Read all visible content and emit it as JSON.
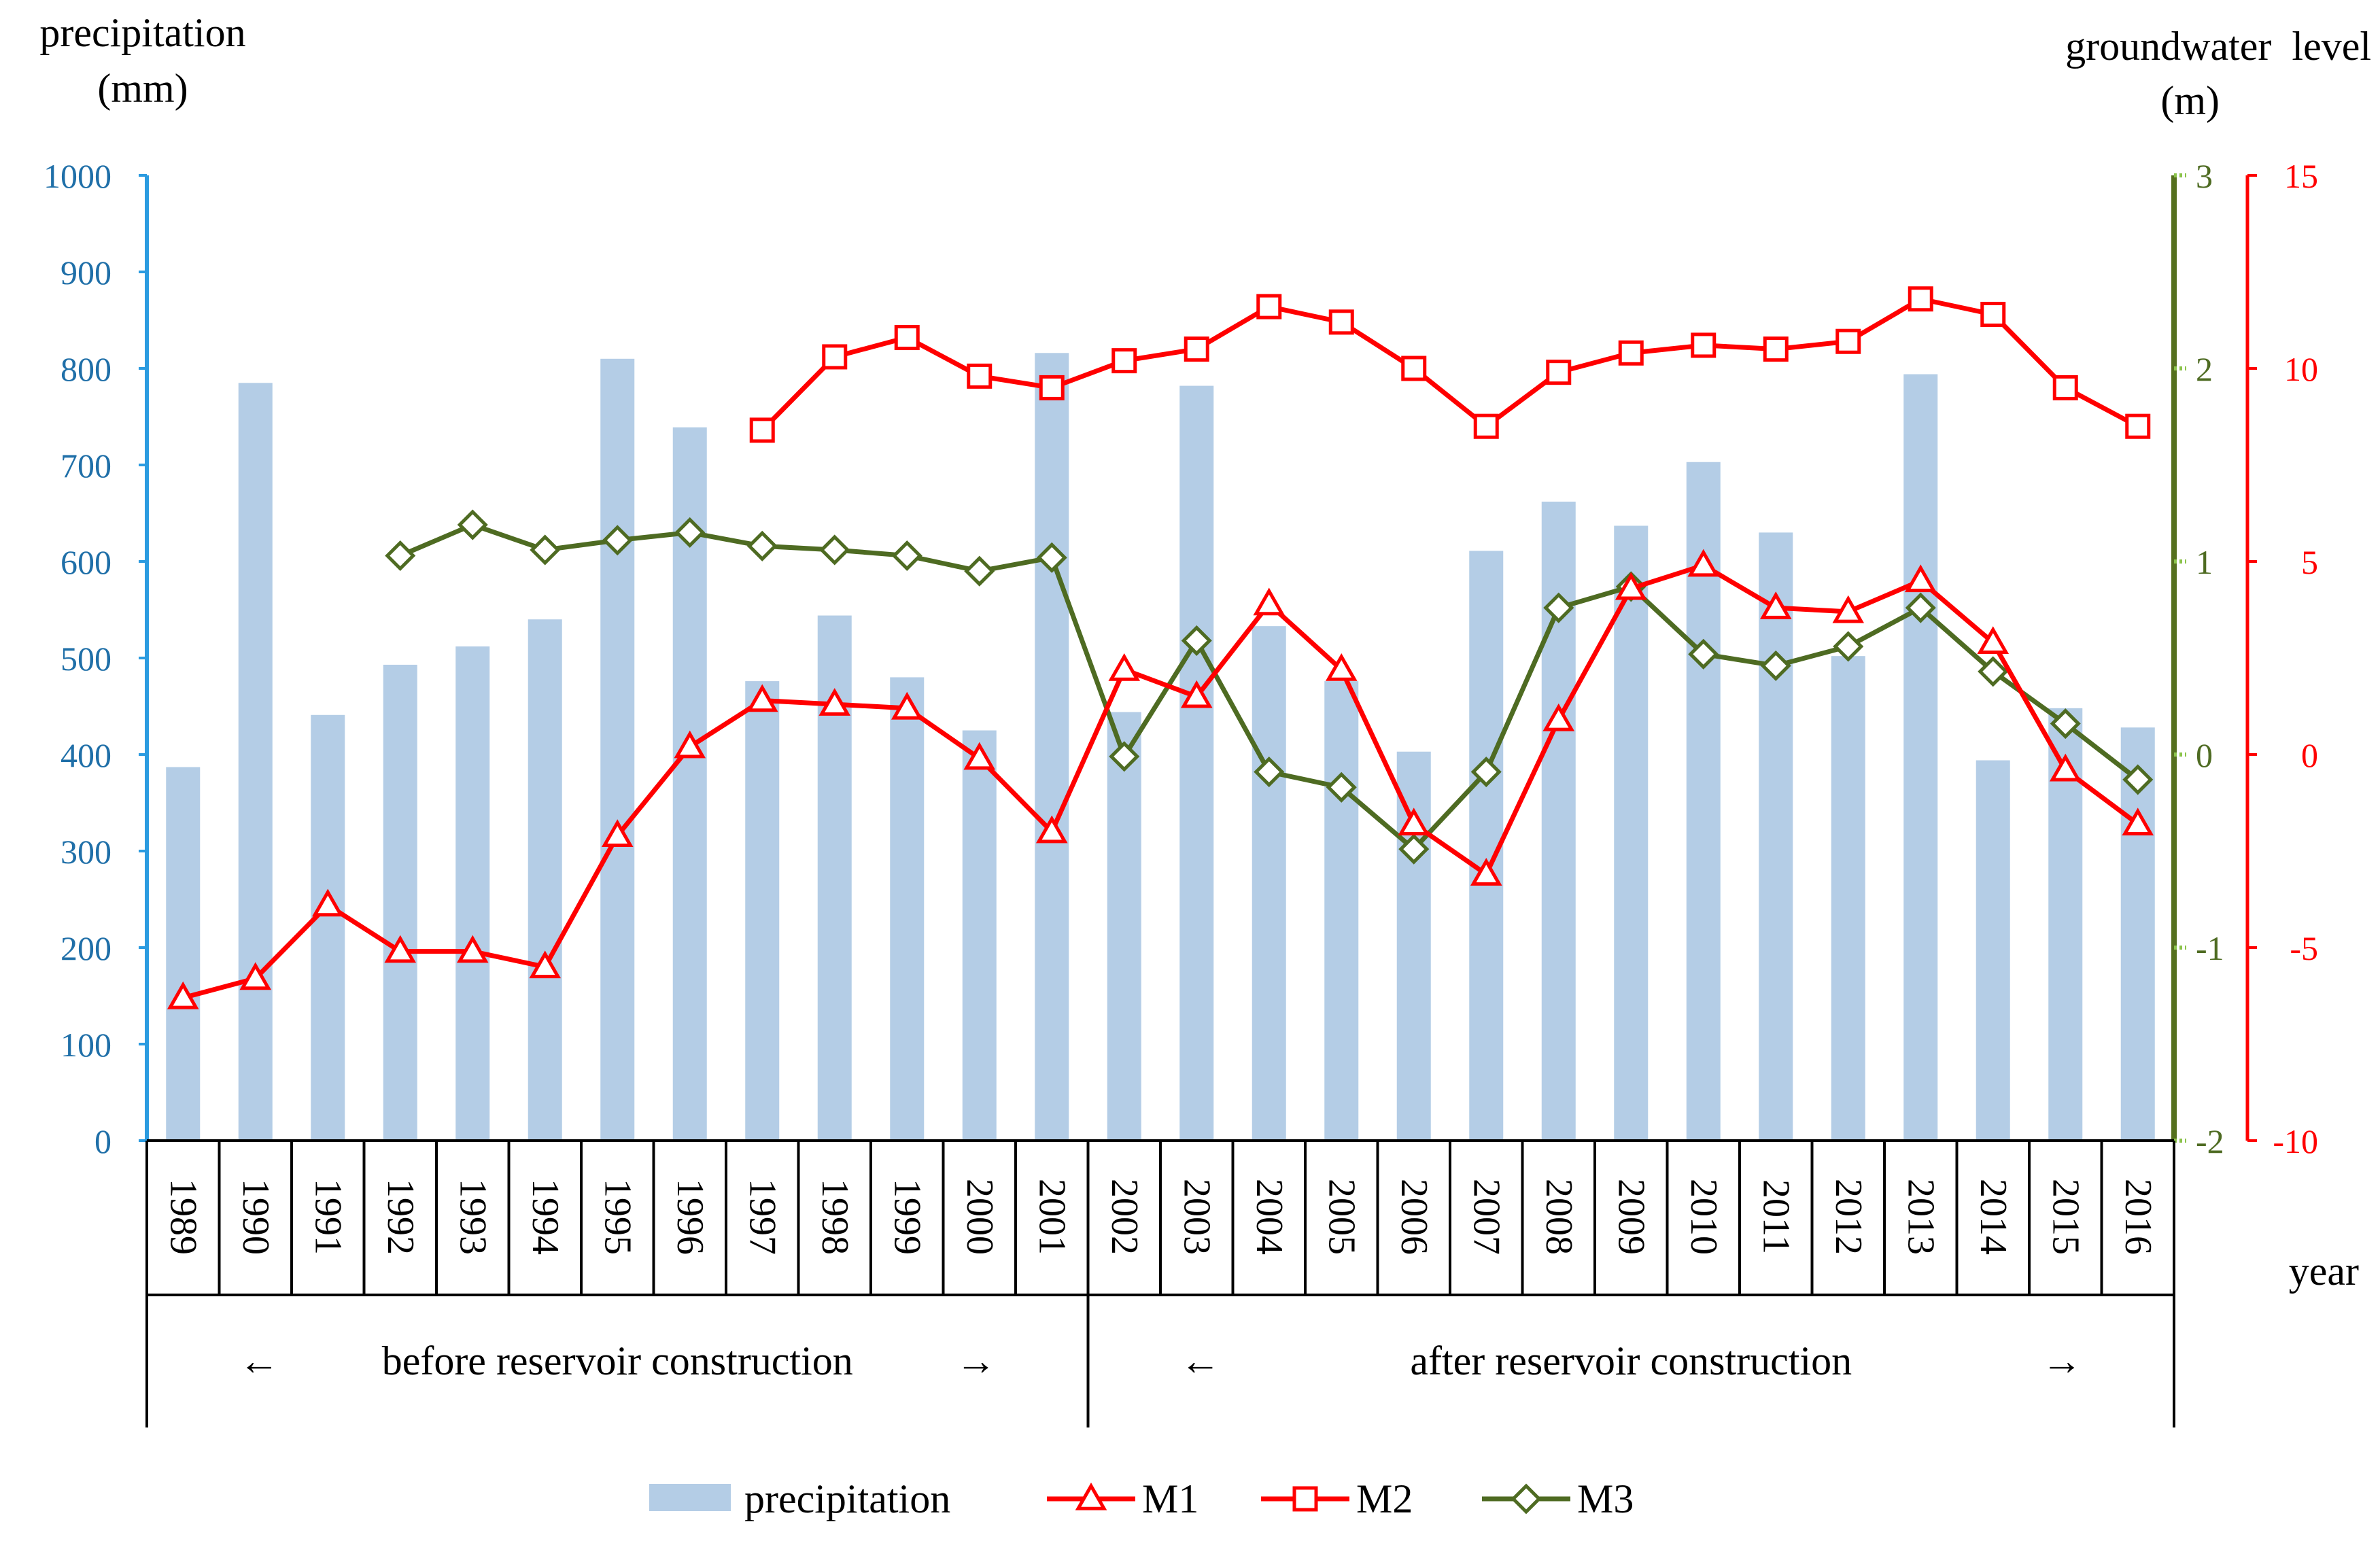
{
  "chart_data": {
    "type": "bar+line",
    "title": "",
    "left_axis": {
      "title_line1": "precipitation",
      "title_line2": "(mm)",
      "ylim": [
        0,
        1000
      ],
      "ticks": [
        0,
        100,
        200,
        300,
        400,
        500,
        600,
        700,
        800,
        900,
        1000
      ],
      "color": "#1F6FA8",
      "line_color": "#2B9BE0"
    },
    "right_axis_inner": {
      "ylim": [
        -2,
        3
      ],
      "ticks": [
        -2,
        -1,
        0,
        1,
        2,
        3
      ],
      "color": "#4E6B22",
      "line_color": "#55701E",
      "mark_color": "#8BC34A"
    },
    "right_axis_outer": {
      "title_line1": "groundwater  level",
      "title_line2": "(m)",
      "ylim": [
        -10,
        15
      ],
      "ticks": [
        -10,
        -5,
        0,
        5,
        10,
        15
      ],
      "color": "#FF0000"
    },
    "x_label": "year",
    "categories": [
      "1989",
      "1990",
      "1991",
      "1992",
      "1993",
      "1994",
      "1995",
      "1996",
      "1997",
      "1998",
      "1999",
      "2000",
      "2001",
      "2002",
      "2003",
      "2004",
      "2005",
      "2006",
      "2007",
      "2008",
      "2009",
      "2010",
      "2011",
      "2012",
      "2013",
      "2014",
      "2015",
      "2016"
    ],
    "periods": [
      {
        "label": "before reservoir  construction",
        "arrow_left": "←",
        "arrow_right": "→",
        "start_index": 0,
        "end_index": 12
      },
      {
        "label": "after reservoir  construction",
        "arrow_left": "←",
        "arrow_right": "→",
        "start_index": 13,
        "end_index": 27
      }
    ],
    "series": [
      {
        "name": "precipitation",
        "kind": "bar",
        "axis": "left",
        "color": "#B4CDE6",
        "values": [
          387,
          785,
          441,
          493,
          512,
          540,
          810,
          739,
          476,
          544,
          480,
          425,
          816,
          444,
          782,
          533,
          476,
          403,
          611,
          662,
          637,
          703,
          630,
          502,
          794,
          394,
          448,
          428
        ]
      },
      {
        "name": "M1",
        "kind": "line",
        "marker": "triangle",
        "axis": "outer",
        "color": "#FF0000",
        "values": [
          -6.3,
          -5.8,
          -3.9,
          -5.1,
          -5.1,
          -5.5,
          -2.1,
          0.2,
          1.4,
          1.3,
          1.2,
          -0.1,
          -2.0,
          2.2,
          1.5,
          3.9,
          2.2,
          -1.8,
          -3.1,
          0.9,
          4.3,
          4.9,
          3.8,
          3.7,
          4.5,
          2.9,
          -0.4,
          -1.8
        ]
      },
      {
        "name": "M2",
        "kind": "line",
        "marker": "square",
        "axis": "outer",
        "color": "#FF0000",
        "values": [
          null,
          null,
          null,
          null,
          null,
          null,
          null,
          null,
          8.4,
          10.3,
          10.8,
          9.8,
          9.5,
          10.2,
          10.5,
          11.6,
          11.2,
          10.0,
          8.5,
          9.9,
          10.4,
          10.6,
          10.5,
          10.7,
          11.8,
          11.4,
          9.5,
          8.5
        ]
      },
      {
        "name": "M3",
        "kind": "line",
        "marker": "diamond",
        "axis": "inner",
        "color": "#4E6B22",
        "values": [
          null,
          null,
          null,
          1.03,
          1.19,
          1.06,
          1.11,
          1.15,
          1.08,
          1.06,
          1.03,
          0.95,
          1.02,
          -0.01,
          0.59,
          -0.09,
          -0.17,
          -0.49,
          -0.09,
          0.76,
          0.87,
          0.52,
          0.46,
          0.56,
          0.76,
          0.43,
          0.16,
          -0.13
        ]
      }
    ],
    "legend": {
      "position": "bottom-center",
      "items": [
        {
          "name": "precipitation",
          "kind": "bar"
        },
        {
          "name": "M1",
          "kind": "line",
          "marker": "triangle"
        },
        {
          "name": "M2",
          "kind": "line",
          "marker": "square"
        },
        {
          "name": "M3",
          "kind": "line",
          "marker": "diamond"
        }
      ]
    }
  }
}
